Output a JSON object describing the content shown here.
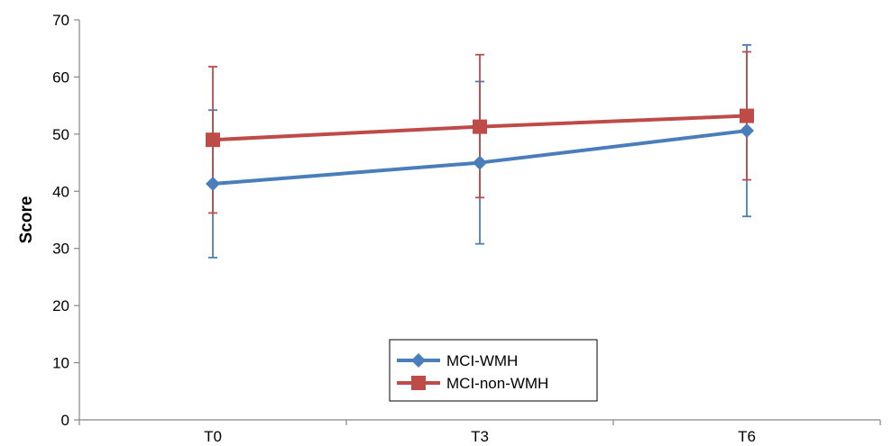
{
  "chart_data": {
    "type": "line",
    "title": "",
    "xlabel": "",
    "ylabel": "Score",
    "categories": [
      "T0",
      "T3",
      "T6"
    ],
    "ylim": [
      0,
      70
    ],
    "yticks": [
      0,
      10,
      20,
      30,
      40,
      50,
      60,
      70
    ],
    "grid": false,
    "legend_position": "bottom-center",
    "series": [
      {
        "name": "MCI-WMH",
        "values": [
          41.3,
          45.0,
          50.6
        ],
        "error_low": [
          28.4,
          30.8,
          35.6
        ],
        "error_high": [
          54.2,
          59.2,
          65.6
        ],
        "marker": "diamond",
        "color": "#4a7ebb"
      },
      {
        "name": "MCI-non-WMH",
        "values": [
          49.0,
          51.3,
          53.2
        ],
        "error_low": [
          36.2,
          38.9,
          42.0
        ],
        "error_high": [
          61.8,
          63.9,
          64.4
        ],
        "marker": "square",
        "color": "#be4b48"
      }
    ]
  }
}
